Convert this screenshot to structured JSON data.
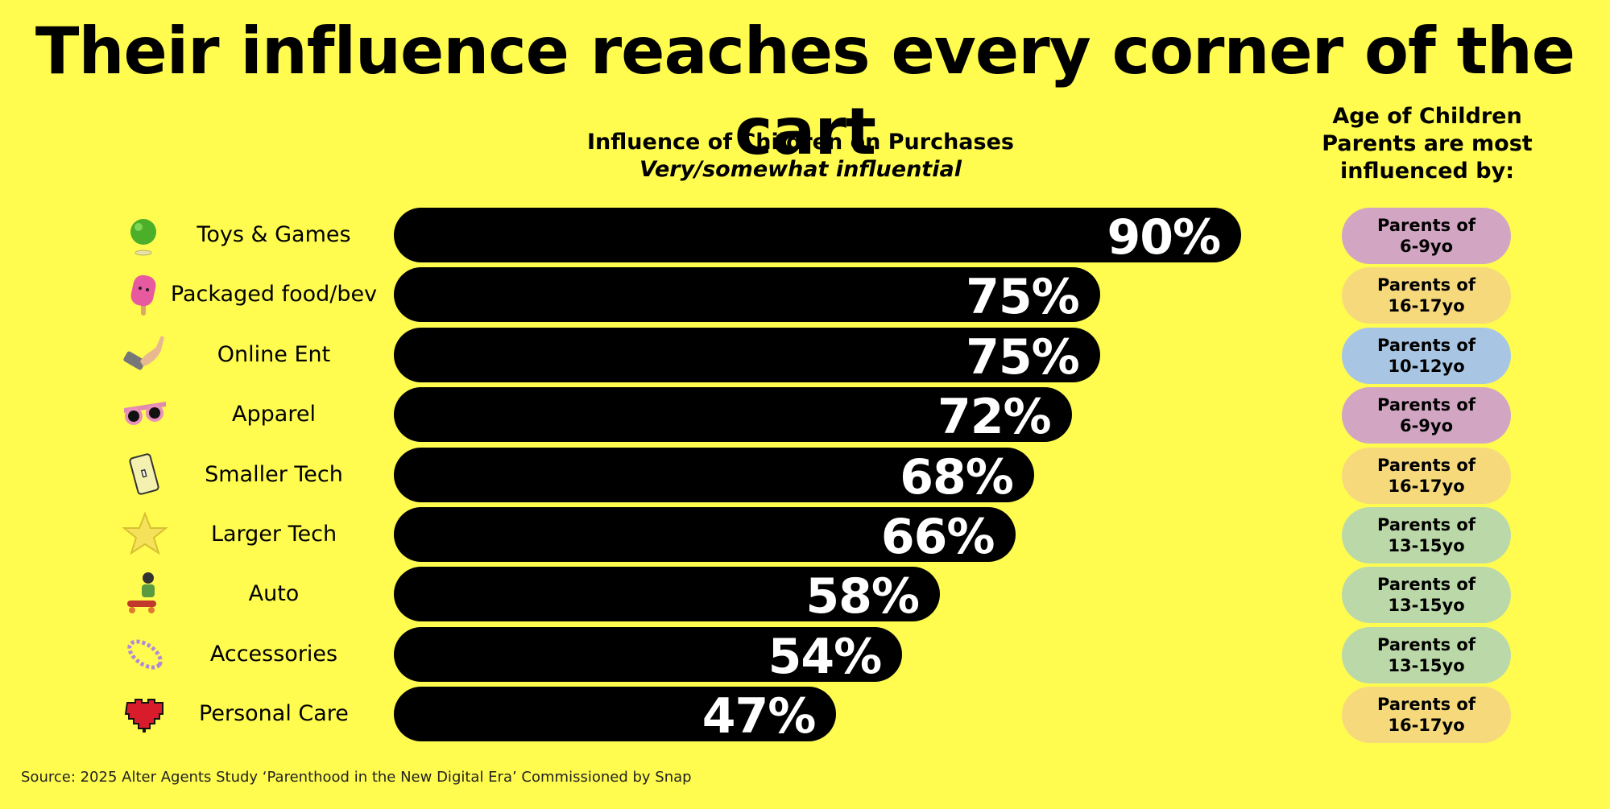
{
  "title": "Their influence reaches every corner of the cart",
  "chart_heading": {
    "title": "Influence of Children on Purchases",
    "subtitle": "Very/somewhat influential"
  },
  "age_heading": "Age of Children Parents are most influenced by:",
  "source": "Source: 2025 Alter Agents Study ‘Parenthood in the New Digital Era’ Commissioned by Snap",
  "chart_data": {
    "type": "bar",
    "orientation": "horizontal",
    "title": "Influence of Children on Purchases",
    "subtitle": "Very/somewhat influential",
    "xlim": [
      0,
      100
    ],
    "categories": [
      "Toys & Games",
      "Packaged food/bev",
      "Online Ent",
      "Apparel",
      "Smaller Tech",
      "Larger Tech",
      "Auto",
      "Accessories",
      "Personal Care"
    ],
    "values": [
      90,
      75,
      75,
      72,
      68,
      66,
      58,
      54,
      47
    ],
    "value_labels": [
      "90%",
      "75%",
      "75%",
      "72%",
      "68%",
      "66%",
      "58%",
      "54%",
      "47%"
    ],
    "bar_color": "#000000",
    "label_color": "#FFFFFF",
    "grid": false,
    "legend": "none"
  },
  "rows": [
    {
      "icon": "green-ball-icon",
      "age_line1": "Parents of",
      "age_line2": "6-9yo",
      "age_color": "#D2A6C3"
    },
    {
      "icon": "popsicle-icon",
      "age_line1": "Parents of",
      "age_line2": "16-17yo",
      "age_color": "#F6D97B"
    },
    {
      "icon": "hand-phone-icon",
      "age_line1": "Parents of",
      "age_line2": "10-12yo",
      "age_color": "#A8C6E4"
    },
    {
      "icon": "sunglasses-icon",
      "age_line1": "Parents of",
      "age_line2": "6-9yo",
      "age_color": "#D2A6C3"
    },
    {
      "icon": "phone-icon",
      "age_line1": "Parents of",
      "age_line2": "16-17yo",
      "age_color": "#F6D97B"
    },
    {
      "icon": "star-icon",
      "age_line1": "Parents of",
      "age_line2": "13-15yo",
      "age_color": "#BBD8A8"
    },
    {
      "icon": "skater-icon",
      "age_line1": "Parents of",
      "age_line2": "13-15yo",
      "age_color": "#BBD8A8"
    },
    {
      "icon": "beaded-bracelet-icon",
      "age_line1": "Parents of",
      "age_line2": "13-15yo",
      "age_color": "#BBD8A8"
    },
    {
      "icon": "pixel-heart-icon",
      "age_line1": "Parents of",
      "age_line2": "16-17yo",
      "age_color": "#F6D97B"
    }
  ],
  "colors": {
    "background": "#FFFC4F",
    "bar": "#000000"
  }
}
